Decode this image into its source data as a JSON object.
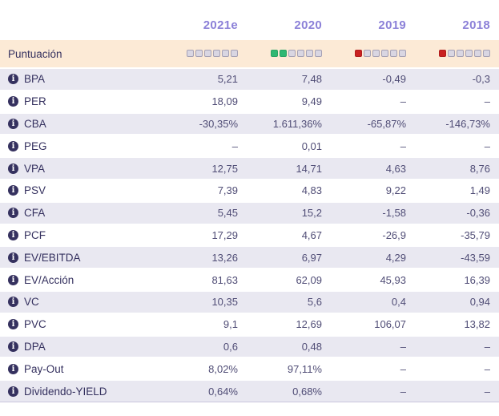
{
  "header": {
    "years": [
      "2021e",
      "2020",
      "2019",
      "2018"
    ]
  },
  "score_row": {
    "label": "Puntuación",
    "total_squares": 6,
    "ratings": [
      {
        "year": "2021e",
        "filled": 0,
        "color": "none"
      },
      {
        "year": "2020",
        "filled": 2,
        "color": "green"
      },
      {
        "year": "2019",
        "filled": 1,
        "color": "red"
      },
      {
        "year": "2018",
        "filled": 1,
        "color": "red"
      }
    ]
  },
  "rows": [
    {
      "label": "BPA",
      "values": [
        "5,21",
        "7,48",
        "-0,49",
        "-0,3"
      ]
    },
    {
      "label": "PER",
      "values": [
        "18,09",
        "9,49",
        "–",
        "–"
      ]
    },
    {
      "label": "CBA",
      "values": [
        "-30,35%",
        "1.611,36%",
        "-65,87%",
        "-146,73%"
      ]
    },
    {
      "label": "PEG",
      "values": [
        "–",
        "0,01",
        "–",
        "–"
      ]
    },
    {
      "label": "VPA",
      "values": [
        "12,75",
        "14,71",
        "4,63",
        "8,76"
      ]
    },
    {
      "label": "PSV",
      "values": [
        "7,39",
        "4,83",
        "9,22",
        "1,49"
      ]
    },
    {
      "label": "CFA",
      "values": [
        "5,45",
        "15,2",
        "-1,58",
        "-0,36"
      ]
    },
    {
      "label": "PCF",
      "values": [
        "17,29",
        "4,67",
        "-26,9",
        "-35,79"
      ]
    },
    {
      "label": "EV/EBITDA",
      "values": [
        "13,26",
        "6,97",
        "4,29",
        "-43,59"
      ]
    },
    {
      "label": "EV/Acción",
      "values": [
        "81,63",
        "62,09",
        "45,93",
        "16,39"
      ]
    },
    {
      "label": "VC",
      "values": [
        "10,35",
        "5,6",
        "0,4",
        "0,94"
      ]
    },
    {
      "label": "PVC",
      "values": [
        "9,1",
        "12,69",
        "106,07",
        "13,82"
      ]
    },
    {
      "label": "DPA",
      "values": [
        "0,6",
        "0,48",
        "–",
        "–"
      ]
    },
    {
      "label": "Pay-Out",
      "values": [
        "8,02%",
        "97,11%",
        "–",
        "–"
      ]
    },
    {
      "label": "Dividendo-YIELD",
      "values": [
        "0,64%",
        "0,68%",
        "–",
        "–"
      ]
    }
  ],
  "icons": {
    "info": "i"
  },
  "colors": {
    "year_header": "#8c81d8",
    "label_text": "#35315f",
    "value_text": "#504d76",
    "score_row_bg": "#fcead6",
    "shaded_row_bg": "#e9e8f1",
    "square_empty": "#d9d6e2",
    "square_green": "#2eb873",
    "square_red": "#c92121"
  }
}
